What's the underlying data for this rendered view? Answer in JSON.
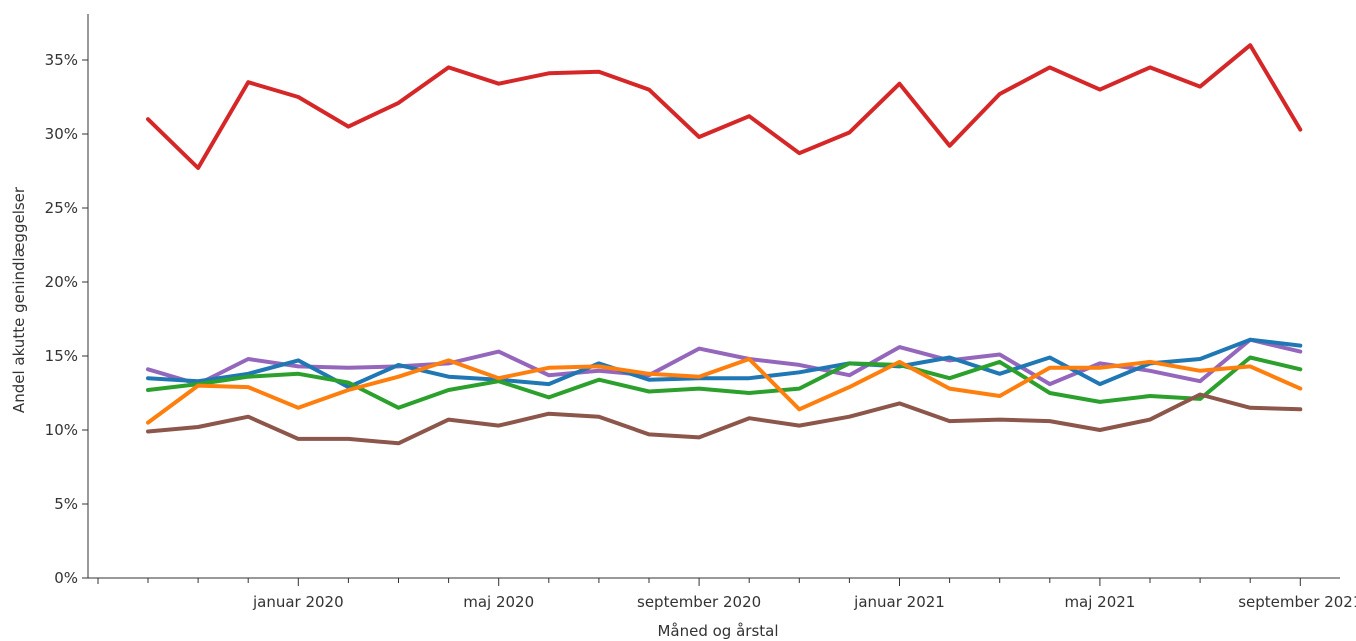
{
  "chart_data": {
    "type": "line",
    "xlabel": "Måned og årstal",
    "ylabel": "Andel akutte genindlæggelser",
    "ylim": [
      0,
      37
    ],
    "yticks": [
      0,
      5,
      10,
      15,
      20,
      25,
      30,
      35
    ],
    "ytick_labels": [
      "0%",
      "5%",
      "10%",
      "15%",
      "20%",
      "25%",
      "30%",
      "35%"
    ],
    "x": [
      "2019-10",
      "2019-11",
      "2019-12",
      "2020-01",
      "2020-02",
      "2020-03",
      "2020-04",
      "2020-05",
      "2020-06",
      "2020-07",
      "2020-08",
      "2020-09",
      "2020-10",
      "2020-11",
      "2020-12",
      "2021-01",
      "2021-02",
      "2021-03",
      "2021-04",
      "2021-05",
      "2021-06",
      "2021-07",
      "2021-08",
      "2021-09"
    ],
    "xtick_labels": [
      {
        "x": "2020-01",
        "label": "januar 2020"
      },
      {
        "x": "2020-05",
        "label": "maj 2020"
      },
      {
        "x": "2020-09",
        "label": "september 2020"
      },
      {
        "x": "2021-01",
        "label": "januar 2021"
      },
      {
        "x": "2021-05",
        "label": "maj 2021"
      },
      {
        "x": "2021-09",
        "label": "september 2021"
      }
    ],
    "series": [
      {
        "color": "#d62728",
        "values": [
          31.0,
          27.7,
          33.5,
          32.5,
          30.5,
          32.1,
          34.5,
          33.4,
          34.1,
          34.2,
          33.0,
          29.8,
          31.2,
          28.7,
          30.1,
          33.4,
          29.2,
          32.7,
          34.5,
          33.0,
          34.5,
          33.2,
          36.0,
          30.3
        ]
      },
      {
        "color": "#9467bd",
        "values": [
          14.1,
          13.1,
          14.8,
          14.3,
          14.2,
          14.3,
          14.5,
          15.3,
          13.7,
          14.0,
          13.7,
          15.5,
          14.8,
          14.4,
          13.7,
          15.6,
          14.7,
          15.1,
          13.1,
          14.5,
          14.0,
          13.3,
          16.1,
          15.3
        ]
      },
      {
        "color": "#1f77b4",
        "values": [
          13.5,
          13.3,
          13.8,
          14.7,
          12.9,
          14.4,
          13.6,
          13.4,
          13.1,
          14.5,
          13.4,
          13.5,
          13.5,
          13.9,
          14.5,
          14.3,
          14.9,
          13.8,
          14.9,
          13.1,
          14.5,
          14.8,
          16.1,
          15.7
        ]
      },
      {
        "color": "#2ca02c",
        "values": [
          12.7,
          13.1,
          13.6,
          13.8,
          13.2,
          11.5,
          12.7,
          13.3,
          12.2,
          13.4,
          12.6,
          12.8,
          12.5,
          12.8,
          14.5,
          14.4,
          13.5,
          14.6,
          12.5,
          11.9,
          12.3,
          12.1,
          14.9,
          14.1
        ]
      },
      {
        "color": "#ff7f0e",
        "values": [
          10.5,
          13.0,
          12.9,
          11.5,
          12.7,
          13.6,
          14.7,
          13.5,
          14.2,
          14.3,
          13.8,
          13.6,
          14.8,
          11.4,
          12.9,
          14.6,
          12.8,
          12.3,
          14.2,
          14.2,
          14.6,
          14.0,
          14.3,
          12.8
        ]
      },
      {
        "color": "#8c564b",
        "values": [
          9.9,
          10.2,
          10.9,
          9.4,
          9.4,
          9.1,
          10.7,
          10.3,
          11.1,
          10.9,
          9.7,
          9.5,
          10.8,
          10.3,
          10.9,
          11.8,
          10.6,
          10.7,
          10.6,
          10.0,
          10.7,
          12.4,
          11.5,
          11.4
        ]
      }
    ]
  }
}
